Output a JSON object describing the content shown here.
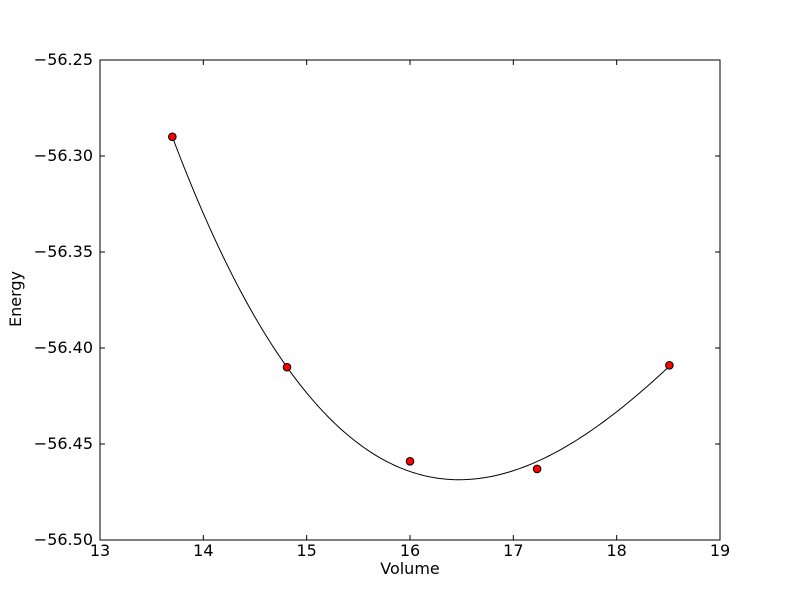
{
  "figure": {
    "background": "#ffffff",
    "frame_color": "#000000"
  },
  "chart_data": {
    "type": "scatter",
    "title": "",
    "xlabel": "Volume",
    "ylabel": "Energy",
    "xlim": [
      13,
      19
    ],
    "ylim": [
      -56.5,
      -56.25
    ],
    "grid": false,
    "legend_position": "none",
    "xticks": [
      {
        "value": 13,
        "label": "13"
      },
      {
        "value": 14,
        "label": "14"
      },
      {
        "value": 15,
        "label": "15"
      },
      {
        "value": 16,
        "label": "16"
      },
      {
        "value": 17,
        "label": "17"
      },
      {
        "value": 18,
        "label": "18"
      },
      {
        "value": 19,
        "label": "19"
      }
    ],
    "yticks": [
      {
        "value": -56.25,
        "label": "−56.25"
      },
      {
        "value": -56.3,
        "label": "−56.30"
      },
      {
        "value": -56.35,
        "label": "−56.35"
      },
      {
        "value": -56.4,
        "label": "−56.40"
      },
      {
        "value": -56.45,
        "label": "−56.45"
      },
      {
        "value": -56.5,
        "label": "−56.50"
      }
    ],
    "series": [
      {
        "name": "fit-curve",
        "kind": "line",
        "color": "#000000",
        "line_width": 1,
        "cubic_fit": {
          "center": 16,
          "coeffs": [
            -56.46433,
            -0.018408,
            0.020688,
            -0.001853
          ],
          "domain": [
            13.7,
            18.51
          ]
        },
        "minimum": {
          "x": 16.48,
          "y": -56.469
        }
      },
      {
        "name": "data-points",
        "kind": "scatter",
        "marker": {
          "shape": "circle",
          "face_color": "#ff0000",
          "edge_color": "#000000",
          "radius_px": 3.8
        },
        "points": [
          {
            "x": 13.7,
            "y": -56.29
          },
          {
            "x": 14.81,
            "y": -56.41
          },
          {
            "x": 16.0,
            "y": -56.459
          },
          {
            "x": 17.23,
            "y": -56.463
          },
          {
            "x": 18.51,
            "y": -56.409
          }
        ]
      }
    ]
  }
}
